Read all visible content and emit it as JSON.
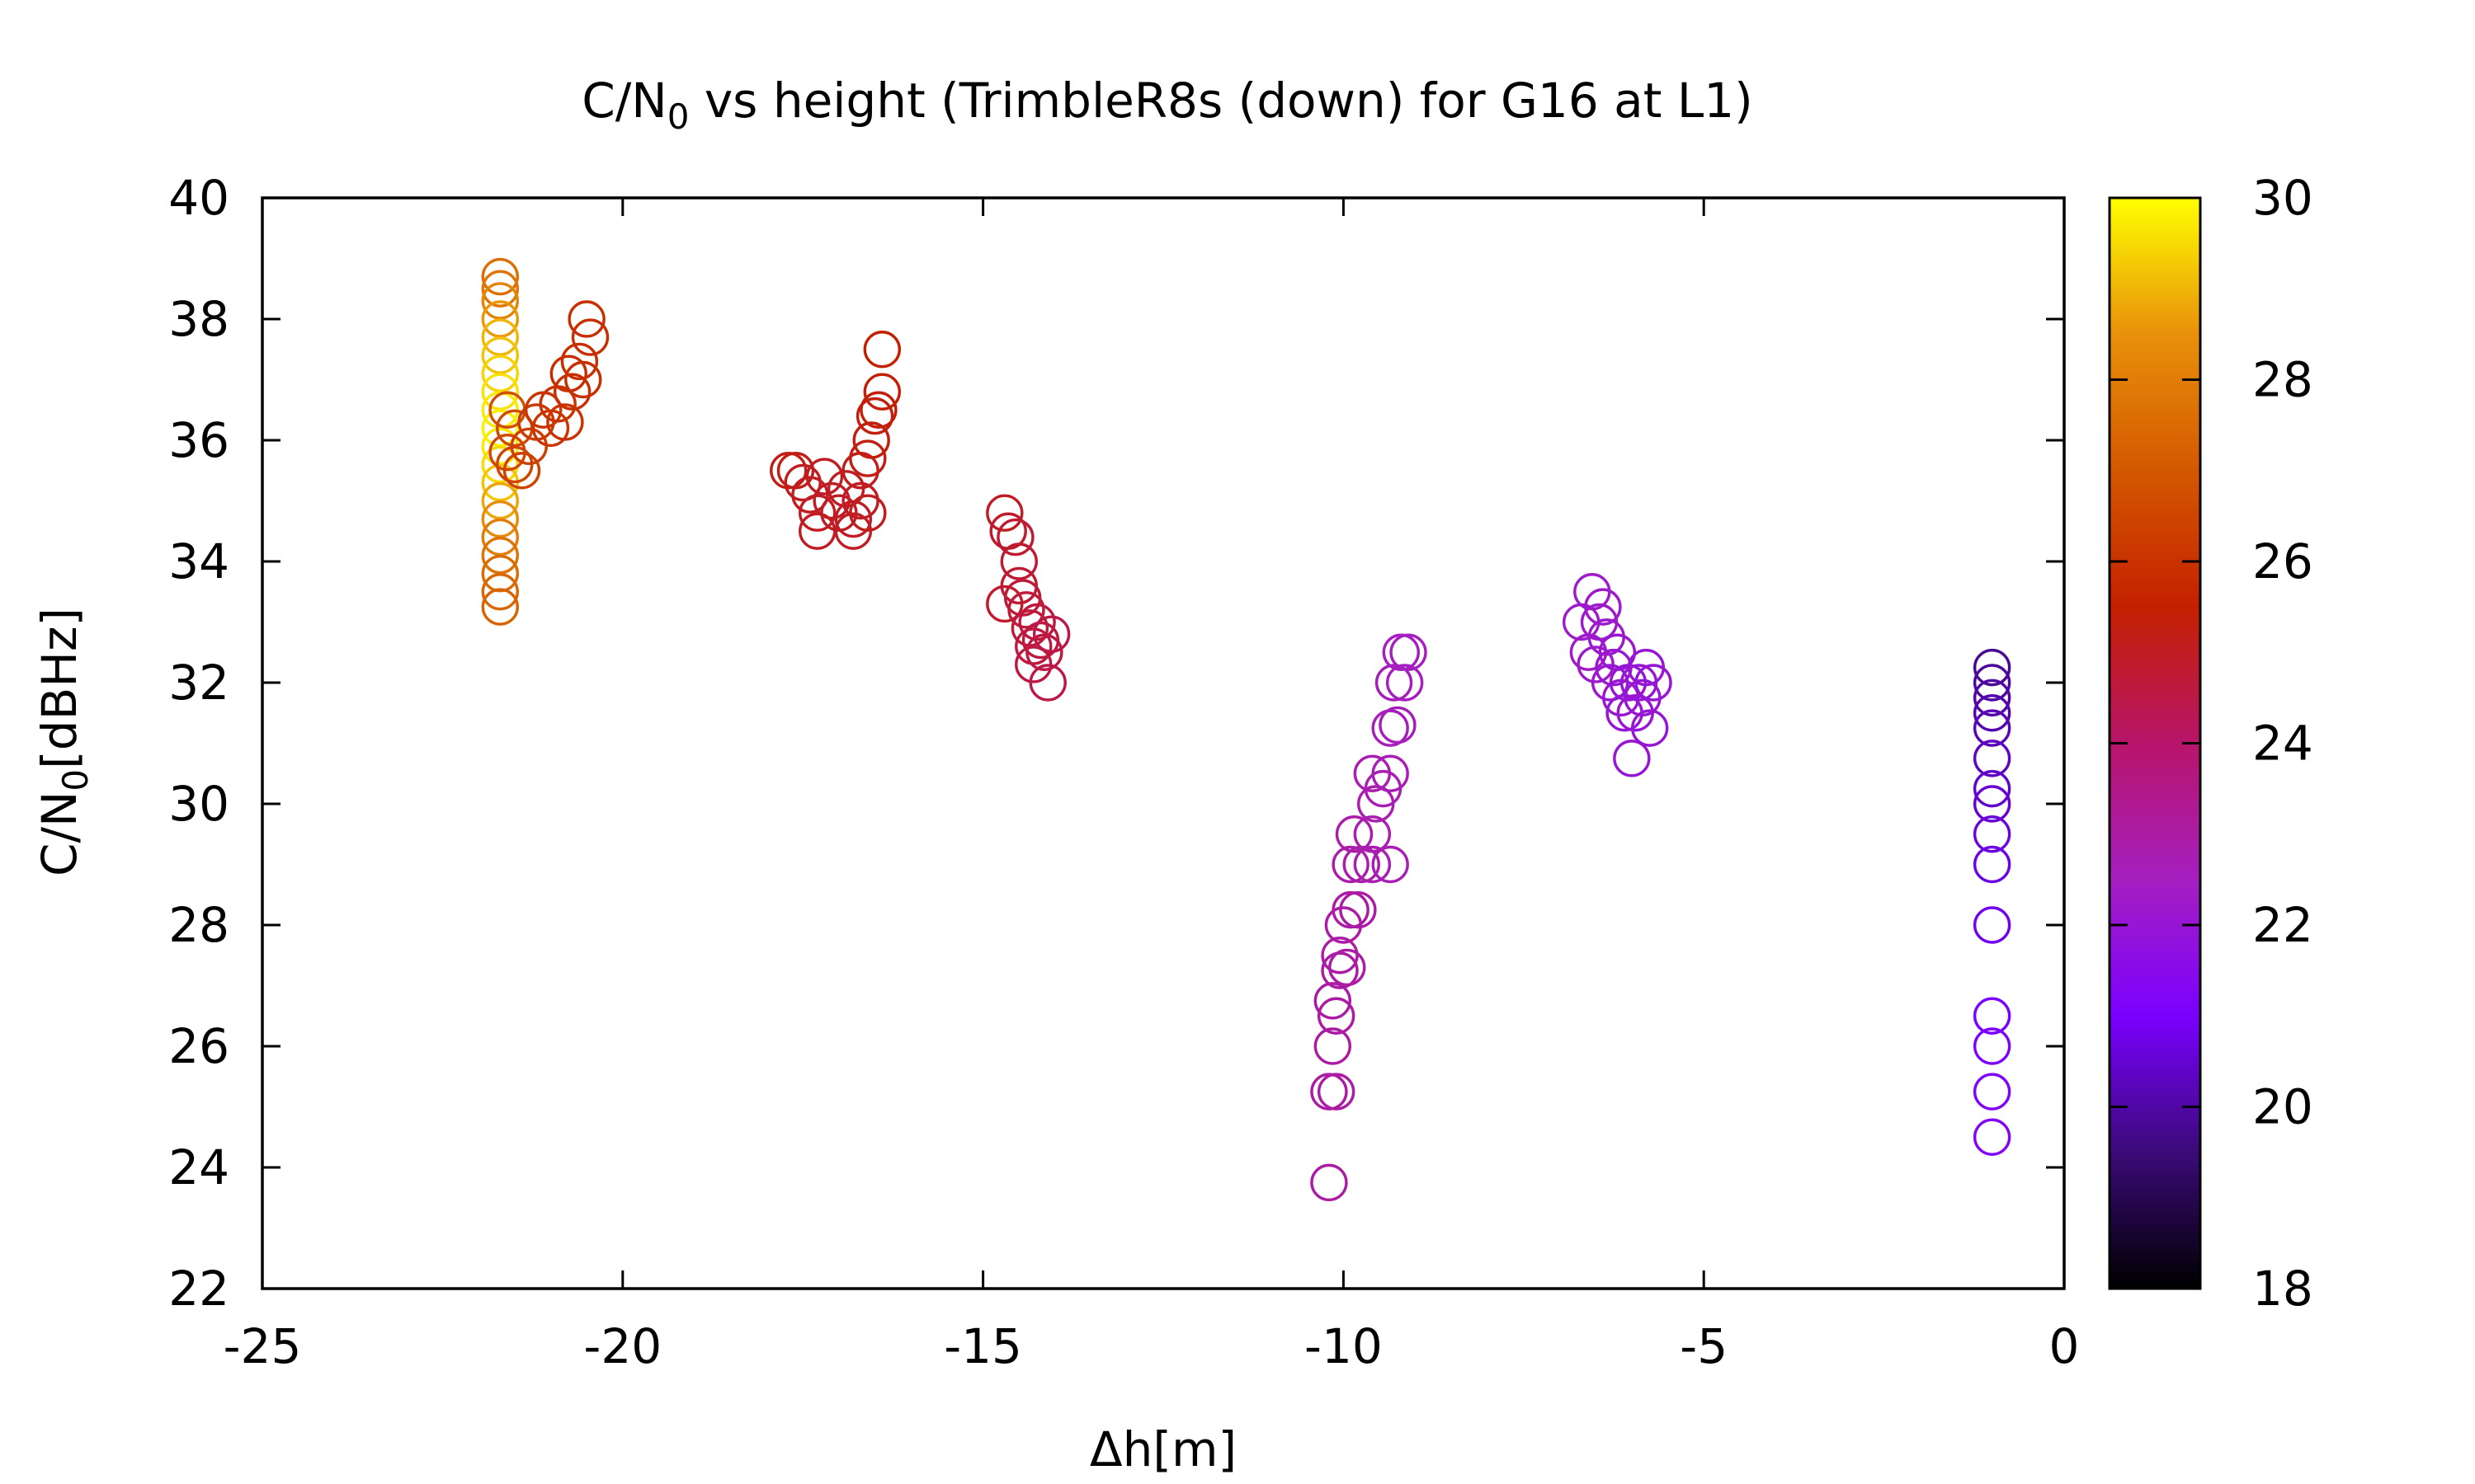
{
  "chart_data": {
    "type": "scatter",
    "title_parts": [
      "C/N",
      "0",
      " vs height (TrimbleR8s (down) for G16 at L1)"
    ],
    "xlabel": "Δh[m]",
    "ylabel_parts": [
      "C/N",
      "0",
      "[dBHz]"
    ],
    "xlim": [
      -25,
      0
    ],
    "ylim": [
      22,
      40
    ],
    "xticks": [
      -25,
      -20,
      -15,
      -10,
      -5,
      0
    ],
    "yticks": [
      22,
      24,
      26,
      28,
      30,
      32,
      34,
      36,
      38,
      40
    ],
    "colorbar": {
      "range": [
        18,
        30
      ],
      "ticks": [
        18,
        20,
        22,
        24,
        26,
        28,
        30
      ],
      "palette": [
        "#000000",
        "#3b0a78",
        "#7a00ff",
        "#a51fc0",
        "#b8146a",
        "#c42000",
        "#d45800",
        "#e8900a",
        "#ffff00"
      ]
    },
    "marker": "open-circle",
    "grid": false,
    "points": [
      {
        "x": -21.7,
        "y": 38.7,
        "c": 27.6
      },
      {
        "x": -21.7,
        "y": 38.5,
        "c": 27.8
      },
      {
        "x": -21.7,
        "y": 38.3,
        "c": 28.2
      },
      {
        "x": -21.7,
        "y": 38.0,
        "c": 28.6
      },
      {
        "x": -21.7,
        "y": 37.7,
        "c": 29.0
      },
      {
        "x": -21.7,
        "y": 37.4,
        "c": 29.2
      },
      {
        "x": -21.7,
        "y": 37.1,
        "c": 29.4
      },
      {
        "x": -21.7,
        "y": 36.8,
        "c": 29.6
      },
      {
        "x": -21.7,
        "y": 36.5,
        "c": 29.7
      },
      {
        "x": -21.7,
        "y": 36.2,
        "c": 29.8
      },
      {
        "x": -21.7,
        "y": 35.9,
        "c": 29.7
      },
      {
        "x": -21.7,
        "y": 35.6,
        "c": 29.5
      },
      {
        "x": -21.7,
        "y": 35.3,
        "c": 29.2
      },
      {
        "x": -21.7,
        "y": 35.0,
        "c": 28.8
      },
      {
        "x": -21.7,
        "y": 34.7,
        "c": 28.4
      },
      {
        "x": -21.7,
        "y": 34.4,
        "c": 28.0
      },
      {
        "x": -21.7,
        "y": 34.1,
        "c": 27.7
      },
      {
        "x": -21.7,
        "y": 33.8,
        "c": 27.5
      },
      {
        "x": -21.7,
        "y": 33.5,
        "c": 27.4
      },
      {
        "x": -21.7,
        "y": 33.25,
        "c": 27.3
      },
      {
        "x": -21.6,
        "y": 36.5,
        "c": 26.8
      },
      {
        "x": -21.5,
        "y": 36.2,
        "c": 26.6
      },
      {
        "x": -21.6,
        "y": 35.8,
        "c": 26.6
      },
      {
        "x": -21.5,
        "y": 35.6,
        "c": 26.5
      },
      {
        "x": -21.4,
        "y": 35.5,
        "c": 26.4
      },
      {
        "x": -21.3,
        "y": 35.9,
        "c": 26.3
      },
      {
        "x": -21.2,
        "y": 36.3,
        "c": 26.2
      },
      {
        "x": -21.1,
        "y": 36.5,
        "c": 26.1
      },
      {
        "x": -21.0,
        "y": 36.2,
        "c": 26.1
      },
      {
        "x": -20.9,
        "y": 36.6,
        "c": 26.0
      },
      {
        "x": -20.8,
        "y": 36.3,
        "c": 26.0
      },
      {
        "x": -20.75,
        "y": 37.1,
        "c": 25.9
      },
      {
        "x": -20.7,
        "y": 36.8,
        "c": 25.9
      },
      {
        "x": -20.6,
        "y": 37.3,
        "c": 25.9
      },
      {
        "x": -20.55,
        "y": 37.0,
        "c": 25.9
      },
      {
        "x": -20.5,
        "y": 38.0,
        "c": 25.9
      },
      {
        "x": -20.45,
        "y": 37.7,
        "c": 25.9
      },
      {
        "x": -17.7,
        "y": 35.5,
        "c": 25.2
      },
      {
        "x": -17.6,
        "y": 35.5,
        "c": 25.2
      },
      {
        "x": -17.5,
        "y": 35.3,
        "c": 25.1
      },
      {
        "x": -17.4,
        "y": 35.1,
        "c": 25.1
      },
      {
        "x": -17.3,
        "y": 34.8,
        "c": 25.0
      },
      {
        "x": -17.3,
        "y": 34.5,
        "c": 25.0
      },
      {
        "x": -17.2,
        "y": 35.4,
        "c": 25.0
      },
      {
        "x": -17.1,
        "y": 35.0,
        "c": 25.0
      },
      {
        "x": -17.0,
        "y": 34.8,
        "c": 25.0
      },
      {
        "x": -16.9,
        "y": 35.2,
        "c": 25.0
      },
      {
        "x": -16.8,
        "y": 34.7,
        "c": 25.0
      },
      {
        "x": -16.8,
        "y": 34.5,
        "c": 25.0
      },
      {
        "x": -16.7,
        "y": 35.0,
        "c": 25.0
      },
      {
        "x": -16.7,
        "y": 35.5,
        "c": 25.1
      },
      {
        "x": -16.6,
        "y": 34.8,
        "c": 25.1
      },
      {
        "x": -16.6,
        "y": 35.7,
        "c": 25.2
      },
      {
        "x": -16.55,
        "y": 36.0,
        "c": 25.3
      },
      {
        "x": -16.5,
        "y": 36.4,
        "c": 25.3
      },
      {
        "x": -16.45,
        "y": 36.5,
        "c": 25.4
      },
      {
        "x": -16.4,
        "y": 36.8,
        "c": 25.4
      },
      {
        "x": -16.4,
        "y": 37.5,
        "c": 25.5
      },
      {
        "x": -14.7,
        "y": 34.8,
        "c": 25.0
      },
      {
        "x": -14.65,
        "y": 34.5,
        "c": 24.9
      },
      {
        "x": -14.7,
        "y": 33.3,
        "c": 24.9
      },
      {
        "x": -14.55,
        "y": 34.4,
        "c": 24.8
      },
      {
        "x": -14.5,
        "y": 34.0,
        "c": 24.8
      },
      {
        "x": -14.5,
        "y": 33.6,
        "c": 24.8
      },
      {
        "x": -14.45,
        "y": 33.4,
        "c": 24.7
      },
      {
        "x": -14.4,
        "y": 33.2,
        "c": 24.7
      },
      {
        "x": -14.35,
        "y": 32.9,
        "c": 24.7
      },
      {
        "x": -14.3,
        "y": 32.6,
        "c": 24.6
      },
      {
        "x": -14.3,
        "y": 32.3,
        "c": 24.6
      },
      {
        "x": -14.25,
        "y": 33.0,
        "c": 24.6
      },
      {
        "x": -14.2,
        "y": 32.7,
        "c": 24.6
      },
      {
        "x": -14.15,
        "y": 32.5,
        "c": 24.6
      },
      {
        "x": -14.1,
        "y": 32.0,
        "c": 24.5
      },
      {
        "x": -14.05,
        "y": 32.8,
        "c": 24.5
      },
      {
        "x": -10.2,
        "y": 23.75,
        "c": 23.0
      },
      {
        "x": -10.2,
        "y": 25.25,
        "c": 23.0
      },
      {
        "x": -10.1,
        "y": 25.25,
        "c": 23.0
      },
      {
        "x": -10.15,
        "y": 26.0,
        "c": 23.0
      },
      {
        "x": -10.1,
        "y": 26.5,
        "c": 23.0
      },
      {
        "x": -10.15,
        "y": 26.75,
        "c": 23.0
      },
      {
        "x": -10.05,
        "y": 27.25,
        "c": 23.0
      },
      {
        "x": -10.05,
        "y": 27.5,
        "c": 23.0
      },
      {
        "x": -9.95,
        "y": 27.3,
        "c": 23.0
      },
      {
        "x": -10.0,
        "y": 28.0,
        "c": 23.0
      },
      {
        "x": -9.9,
        "y": 28.25,
        "c": 23.0
      },
      {
        "x": -9.8,
        "y": 28.25,
        "c": 23.0
      },
      {
        "x": -9.9,
        "y": 29.0,
        "c": 22.9
      },
      {
        "x": -9.85,
        "y": 29.5,
        "c": 22.9
      },
      {
        "x": -9.75,
        "y": 29.0,
        "c": 22.9
      },
      {
        "x": -9.6,
        "y": 29.0,
        "c": 22.8
      },
      {
        "x": -9.6,
        "y": 29.5,
        "c": 22.8
      },
      {
        "x": -9.55,
        "y": 30.0,
        "c": 22.8
      },
      {
        "x": -9.6,
        "y": 30.5,
        "c": 22.8
      },
      {
        "x": -9.45,
        "y": 30.25,
        "c": 22.7
      },
      {
        "x": -9.35,
        "y": 29.0,
        "c": 22.7
      },
      {
        "x": -9.35,
        "y": 30.5,
        "c": 22.7
      },
      {
        "x": -9.35,
        "y": 31.25,
        "c": 22.6
      },
      {
        "x": -9.3,
        "y": 32.0,
        "c": 22.6
      },
      {
        "x": -9.25,
        "y": 31.3,
        "c": 22.6
      },
      {
        "x": -9.2,
        "y": 32.5,
        "c": 22.5
      },
      {
        "x": -9.15,
        "y": 32.0,
        "c": 22.5
      },
      {
        "x": -9.1,
        "y": 32.5,
        "c": 22.5
      },
      {
        "x": -6.7,
        "y": 33.0,
        "c": 22.3
      },
      {
        "x": -6.6,
        "y": 32.5,
        "c": 22.3
      },
      {
        "x": -6.55,
        "y": 33.5,
        "c": 22.3
      },
      {
        "x": -6.5,
        "y": 32.3,
        "c": 22.2
      },
      {
        "x": -6.45,
        "y": 33.0,
        "c": 22.2
      },
      {
        "x": -6.4,
        "y": 33.25,
        "c": 22.2
      },
      {
        "x": -6.35,
        "y": 32.75,
        "c": 22.2
      },
      {
        "x": -6.3,
        "y": 32.0,
        "c": 22.1
      },
      {
        "x": -6.25,
        "y": 32.25,
        "c": 22.1
      },
      {
        "x": -6.2,
        "y": 32.5,
        "c": 22.1
      },
      {
        "x": -6.15,
        "y": 31.75,
        "c": 22.1
      },
      {
        "x": -6.1,
        "y": 31.5,
        "c": 22.0
      },
      {
        "x": -6.05,
        "y": 32.0,
        "c": 22.0
      },
      {
        "x": -6.0,
        "y": 30.75,
        "c": 22.0
      },
      {
        "x": -5.95,
        "y": 31.5,
        "c": 22.0
      },
      {
        "x": -5.9,
        "y": 32.0,
        "c": 22.0
      },
      {
        "x": -5.85,
        "y": 31.75,
        "c": 22.0
      },
      {
        "x": -5.8,
        "y": 32.25,
        "c": 22.0
      },
      {
        "x": -5.75,
        "y": 31.25,
        "c": 22.0
      },
      {
        "x": -5.7,
        "y": 32.0,
        "c": 22.0
      },
      {
        "x": -1.0,
        "y": 32.25,
        "c": 19.8
      },
      {
        "x": -1.0,
        "y": 32.0,
        "c": 19.9
      },
      {
        "x": -1.0,
        "y": 31.75,
        "c": 20.0
      },
      {
        "x": -1.0,
        "y": 31.5,
        "c": 20.1
      },
      {
        "x": -1.0,
        "y": 31.25,
        "c": 20.2
      },
      {
        "x": -1.0,
        "y": 30.75,
        "c": 20.3
      },
      {
        "x": -1.0,
        "y": 30.25,
        "c": 20.4
      },
      {
        "x": -1.0,
        "y": 30.0,
        "c": 20.5
      },
      {
        "x": -1.0,
        "y": 29.5,
        "c": 20.6
      },
      {
        "x": -1.0,
        "y": 29.0,
        "c": 20.7
      },
      {
        "x": -1.0,
        "y": 28.0,
        "c": 20.8
      },
      {
        "x": -1.0,
        "y": 26.5,
        "c": 21.0
      },
      {
        "x": -1.0,
        "y": 26.0,
        "c": 21.1
      },
      {
        "x": -1.0,
        "y": 25.25,
        "c": 21.2
      },
      {
        "x": -1.0,
        "y": 24.5,
        "c": 21.3
      }
    ]
  }
}
